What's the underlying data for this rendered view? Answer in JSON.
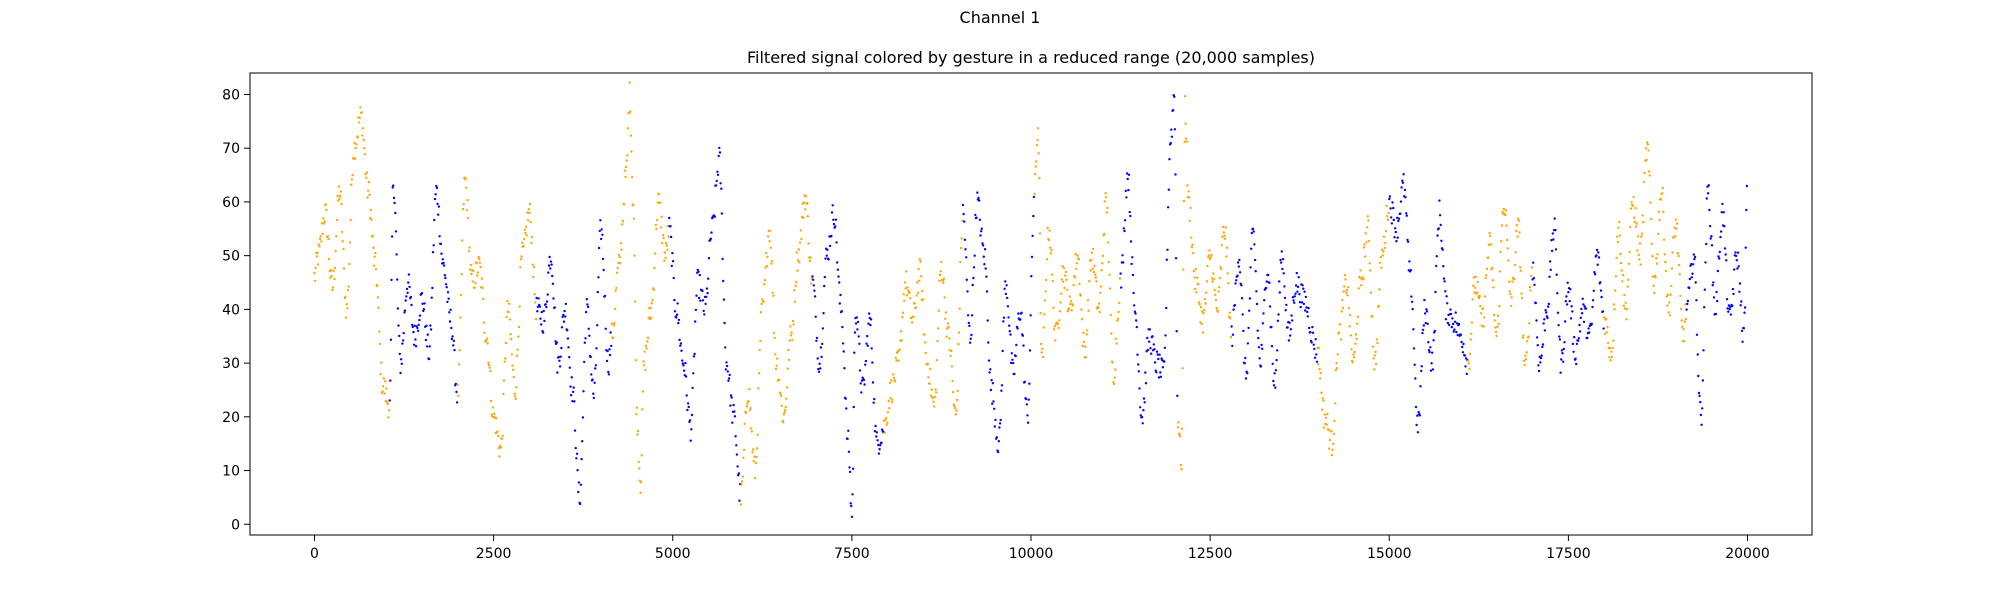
{
  "figure": {
    "suptitle": "Channel 1",
    "title": "Filtered signal colored by gesture in a reduced range (20,000 samples)"
  },
  "chart_data": {
    "type": "scatter",
    "title": "Filtered signal colored by gesture in a reduced range (20,000 samples)",
    "xlabel": "",
    "ylabel": "",
    "xlim": [
      -900,
      20900
    ],
    "ylim": [
      -2,
      84
    ],
    "xticks": [
      0,
      2500,
      5000,
      7500,
      10000,
      12500,
      15000,
      17500,
      20000
    ],
    "yticks": [
      0,
      10,
      20,
      30,
      40,
      50,
      60,
      70,
      80
    ],
    "grid": false,
    "legend": "none",
    "colors": {
      "gesture_a": "#ffa500",
      "gesture_b": "#0000ff"
    },
    "segments": [
      {
        "color": "#ffa500",
        "x": [
          0,
          50,
          150,
          250,
          350,
          450,
          550,
          650,
          750,
          850,
          950,
          1050
        ],
        "y": [
          46,
          50,
          58,
          44,
          62,
          40,
          70,
          76,
          62,
          48,
          26,
          22
        ]
      },
      {
        "color": "#0000ff",
        "x": [
          1050,
          1100,
          1200,
          1300,
          1400,
          1500,
          1600,
          1700,
          1800,
          1900,
          2000
        ],
        "y": [
          22,
          64,
          30,
          45,
          35,
          42,
          32,
          62,
          48,
          38,
          24
        ]
      },
      {
        "color": "#ffa500",
        "x": [
          2000,
          2100,
          2200,
          2300,
          2400,
          2500,
          2600,
          2700,
          2800,
          2900,
          3000,
          3100
        ],
        "y": [
          24,
          64,
          45,
          48,
          35,
          20,
          14,
          40,
          25,
          50,
          58,
          40
        ]
      },
      {
        "color": "#0000ff",
        "x": [
          3100,
          3200,
          3300,
          3400,
          3500,
          3600,
          3700,
          3800,
          3900,
          4000,
          4100,
          4150
        ],
        "y": [
          40,
          38,
          50,
          30,
          40,
          25,
          5,
          40,
          24,
          55,
          30,
          35
        ]
      },
      {
        "color": "#ffa500",
        "x": [
          4150,
          4250,
          4350,
          4400,
          4450,
          4500,
          4550,
          4600,
          4700,
          4800,
          4900,
          4950
        ],
        "y": [
          35,
          48,
          65,
          80,
          60,
          20,
          8,
          30,
          40,
          60,
          50,
          55
        ]
      },
      {
        "color": "#0000ff",
        "x": [
          4950,
          5050,
          5150,
          5250,
          5350,
          5450,
          5550,
          5650,
          5750,
          5850,
          5950
        ],
        "y": [
          55,
          40,
          30,
          18,
          45,
          40,
          55,
          68,
          30,
          20,
          5
        ]
      },
      {
        "color": "#ffa500",
        "x": [
          5950,
          6050,
          6150,
          6250,
          6350,
          6450,
          6550,
          6650,
          6750,
          6850,
          6950
        ],
        "y": [
          5,
          25,
          10,
          40,
          55,
          30,
          20,
          35,
          50,
          61,
          45
        ]
      },
      {
        "color": "#0000ff",
        "x": [
          6950,
          7050,
          7150,
          7250,
          7350,
          7450,
          7500,
          7550,
          7650,
          7750,
          7850,
          7950
        ],
        "y": [
          45,
          30,
          50,
          58,
          40,
          15,
          2,
          40,
          25,
          38,
          15,
          18
        ]
      },
      {
        "color": "#ffa500",
        "x": [
          7950,
          8050,
          8150,
          8250,
          8350,
          8450,
          8550,
          8650,
          8750,
          8850,
          8950,
          9050
        ],
        "y": [
          18,
          25,
          30,
          45,
          38,
          47,
          30,
          22,
          48,
          35,
          20,
          58
        ]
      },
      {
        "color": "#0000ff",
        "x": [
          9050,
          9150,
          9250,
          9350,
          9450,
          9550,
          9650,
          9750,
          9850,
          9950,
          10050
        ],
        "y": [
          58,
          35,
          60,
          50,
          25,
          15,
          45,
          28,
          40,
          20,
          62
        ]
      },
      {
        "color": "#ffa500",
        "x": [
          10050,
          10100,
          10150,
          10250,
          10350,
          10450,
          10550,
          10650,
          10750,
          10850,
          10950,
          11050,
          11150,
          11250
        ],
        "y": [
          62,
          74,
          30,
          55,
          35,
          47,
          40,
          50,
          32,
          50,
          40,
          60,
          28,
          45
        ]
      },
      {
        "color": "#0000ff",
        "x": [
          11250,
          11350,
          11450,
          11550,
          11650,
          11750,
          11850,
          11950,
          12000,
          12050
        ],
        "y": [
          45,
          65,
          40,
          20,
          35,
          30,
          28,
          72,
          80,
          20
        ]
      },
      {
        "color": "#ffa500",
        "x": [
          12050,
          12100,
          12150,
          12200,
          12300,
          12400,
          12500,
          12600,
          12700,
          12800
        ],
        "y": [
          20,
          12,
          78,
          60,
          45,
          38,
          50,
          40,
          55,
          35
        ]
      },
      {
        "color": "#0000ff",
        "x": [
          12800,
          12900,
          13000,
          13100,
          13200,
          13300,
          13400,
          13500,
          13600,
          13700,
          13800,
          14000
        ],
        "y": [
          35,
          50,
          28,
          54,
          30,
          48,
          26,
          50,
          35,
          45,
          42,
          32
        ]
      },
      {
        "color": "#ffa500",
        "x": [
          14000,
          14100,
          14200,
          14300,
          14400,
          14500,
          14600,
          14700,
          14800,
          14900,
          15000
        ],
        "y": [
          32,
          20,
          15,
          35,
          45,
          30,
          45,
          55,
          30,
          50,
          60
        ]
      },
      {
        "color": "#0000ff",
        "x": [
          15000,
          15100,
          15200,
          15300,
          15400,
          15500,
          15600,
          15700,
          15800,
          15900,
          16000,
          16100
        ],
        "y": [
          60,
          55,
          63,
          45,
          18,
          40,
          30,
          58,
          40,
          38,
          35,
          30
        ]
      },
      {
        "color": "#ffa500",
        "x": [
          16100,
          16200,
          16300,
          16400,
          16500,
          16600,
          16700,
          16800,
          16900,
          17000
        ],
        "y": [
          30,
          45,
          38,
          52,
          35,
          60,
          42,
          55,
          29,
          48
        ]
      },
      {
        "color": "#0000ff",
        "x": [
          17000,
          17100,
          17200,
          17300,
          17400,
          17500,
          17600,
          17700,
          17800,
          17900,
          18000
        ],
        "y": [
          48,
          30,
          40,
          55,
          30,
          44,
          32,
          40,
          35,
          50,
          38
        ]
      },
      {
        "color": "#ffa500",
        "x": [
          18000,
          18100,
          18200,
          18300,
          18400,
          18500,
          18600,
          18700,
          18800,
          18900,
          19000,
          19100,
          19150
        ],
        "y": [
          38,
          32,
          55,
          40,
          60,
          50,
          70,
          45,
          62,
          40,
          56,
          35,
          40
        ]
      },
      {
        "color": "#0000ff",
        "x": [
          19150,
          19250,
          19350,
          19450,
          19550,
          19650,
          19750,
          19850,
          19950,
          20000
        ],
        "y": [
          40,
          50,
          20,
          62,
          40,
          58,
          38,
          50,
          35,
          65
        ]
      }
    ]
  }
}
